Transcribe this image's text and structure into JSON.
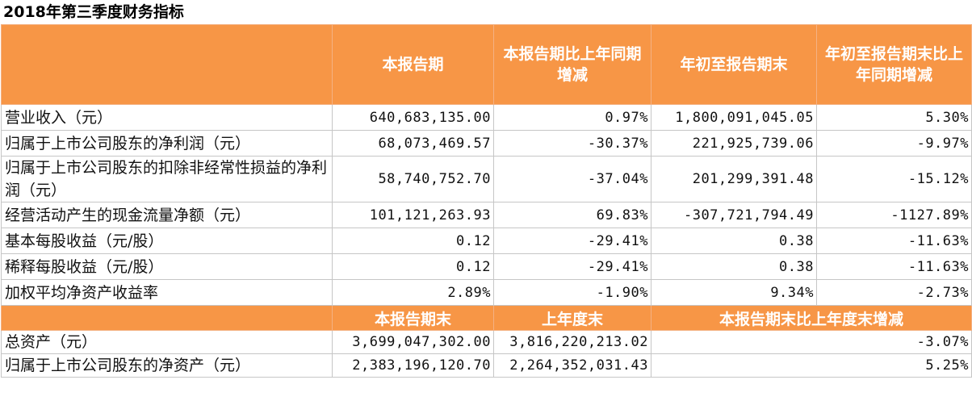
{
  "title": "2018年第三季度财务指标",
  "header": {
    "col0": "",
    "col1": "本报告期",
    "col2": "本报告期比上年同期增减",
    "col3": "年初至报告期末",
    "col4": "年初至报告期末比上年同期增减"
  },
  "rows": [
    {
      "label": "营业收入（元）",
      "c1": "640,683,135.00",
      "c2": "0.97%",
      "c3": "1,800,091,045.05",
      "c4": "5.30%"
    },
    {
      "label": "归属于上市公司股东的净利润（元）",
      "c1": "68,073,469.57",
      "c2": "-30.37%",
      "c3": "221,925,739.06",
      "c4": "-9.97%"
    },
    {
      "label": "归属于上市公司股东的扣除非经常性损益的净利润（元）",
      "c1": "58,740,752.70",
      "c2": "-37.04%",
      "c3": "201,299,391.48",
      "c4": "-15.12%"
    },
    {
      "label": "经营活动产生的现金流量净额（元）",
      "c1": "101,121,263.93",
      "c2": "69.83%",
      "c3": "-307,721,794.49",
      "c4": "-1127.89%"
    },
    {
      "label": "基本每股收益（元/股）",
      "c1": "0.12",
      "c2": "-29.41%",
      "c3": "0.38",
      "c4": "-11.63%"
    },
    {
      "label": "稀释每股收益（元/股）",
      "c1": "0.12",
      "c2": "-29.41%",
      "c3": "0.38",
      "c4": "-11.63%"
    },
    {
      "label": "加权平均净资产收益率",
      "c1": "2.89%",
      "c2": "-1.90%",
      "c3": "9.34%",
      "c4": "-2.73%"
    }
  ],
  "header2": {
    "col0": "",
    "col1": "本报告期末",
    "col2": "上年度末",
    "col3": "本报告期末比上年度末增减"
  },
  "rows2": [
    {
      "label": "总资产（元）",
      "c1": "3,699,047,302.00",
      "c2": "3,816,220,213.02",
      "c3": "-3.07%"
    },
    {
      "label": "归属于上市公司股东的净资产（元）",
      "c1": "2,383,196,120.70",
      "c2": "2,264,352,031.43",
      "c3": "5.25%"
    }
  ],
  "colors": {
    "header_bg": "#f79646",
    "header_text": "#ffffff",
    "grid": "#c6c6c6"
  }
}
